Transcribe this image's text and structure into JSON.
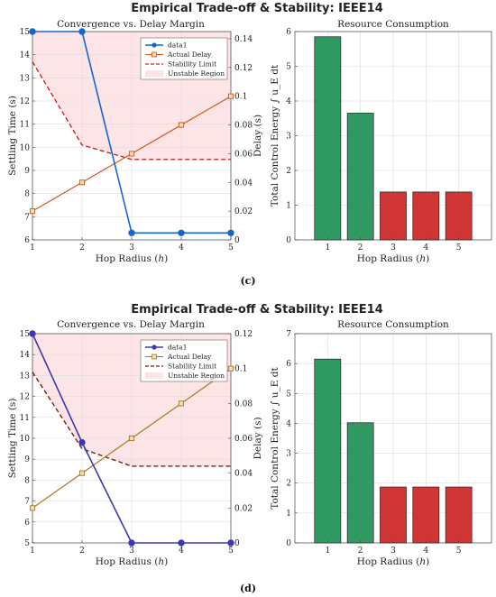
{
  "figure": {
    "panel_labels": [
      "(c)",
      "(d)"
    ]
  },
  "colors": {
    "left_axis": "#1f77b4",
    "right_axis": "#d9541a",
    "unstable_fill": "#fde4e6",
    "green_bar": "#2e9960",
    "red_bar": "#d03535"
  },
  "chart_data": [
    {
      "type": "line",
      "figure": "c",
      "suptitle": "Empirical Trade-off & Stability: IEEE14",
      "title": "Convergence vs. Delay Margin",
      "xlabel": "Hop Radius (h)",
      "ylabel_left": "Settling Time (s)",
      "ylabel_right": "Delay (s)",
      "x": [
        1,
        2,
        3,
        4,
        5
      ],
      "xlim": [
        1,
        5
      ],
      "ylim_left": [
        6,
        15
      ],
      "ylim_right": [
        0,
        0.145
      ],
      "yticks_left": [
        6,
        7,
        8,
        9,
        10,
        11,
        12,
        13,
        14,
        15
      ],
      "yticks_right": [
        0,
        0.02,
        0.04,
        0.06,
        0.08,
        0.1,
        0.12,
        0.14
      ],
      "grid": true,
      "legend_position": "top-right",
      "series": [
        {
          "name": "data1",
          "axis": "left",
          "color": "#1666c8",
          "values": [
            15,
            15,
            6.3,
            6.3,
            6.3
          ]
        },
        {
          "name": "Actual Delay",
          "axis": "right",
          "color": "#d9541a",
          "values": [
            0.02,
            0.04,
            0.06,
            0.08,
            0.1
          ]
        },
        {
          "name": "Stability Limit",
          "axis": "right",
          "color": "#d62020",
          "style": "dashed",
          "values": [
            0.124,
            0.066,
            0.056,
            0.056,
            0.056
          ]
        },
        {
          "name": "Unstable Region",
          "axis": "right",
          "type": "area"
        }
      ]
    },
    {
      "type": "bar",
      "figure": "c",
      "title": "Resource Consumption",
      "xlabel": "Hop Radius (h)",
      "ylabel": "Total Control Energy ∫ u_E dt",
      "categories": [
        "1",
        "2",
        "3",
        "4",
        "5"
      ],
      "values": [
        5.85,
        3.65,
        1.38,
        1.38,
        1.38
      ],
      "ylim": [
        0,
        6
      ],
      "yticks": [
        0,
        1,
        2,
        3,
        4,
        5,
        6
      ],
      "grid": true,
      "bar_colors": [
        "green",
        "green",
        "red",
        "red",
        "red"
      ]
    },
    {
      "type": "line",
      "figure": "d",
      "suptitle": "Empirical Trade-off & Stability: IEEE14",
      "title": "Convergence vs. Delay Margin",
      "xlabel": "Hop Radius (h)",
      "ylabel_left": "Settling Time (s)",
      "ylabel_right": "Delay (s)",
      "x": [
        1,
        2,
        3,
        4,
        5
      ],
      "xlim": [
        1,
        5
      ],
      "ylim_left": [
        5,
        15
      ],
      "ylim_right": [
        0,
        0.12
      ],
      "yticks_left": [
        5,
        6,
        7,
        8,
        9,
        10,
        11,
        12,
        13,
        14,
        15
      ],
      "yticks_right": [
        0,
        0.02,
        0.04,
        0.06,
        0.08,
        0.1,
        0.12
      ],
      "grid": true,
      "legend_position": "top-right",
      "series": [
        {
          "name": "data1",
          "axis": "left",
          "color": "#3a3ab0",
          "values": [
            15,
            9.8,
            5,
            5,
            5
          ]
        },
        {
          "name": "Actual Delay",
          "axis": "right",
          "color": "#a87a1a",
          "values": [
            0.02,
            0.04,
            0.06,
            0.08,
            0.1
          ]
        },
        {
          "name": "Stability Limit",
          "axis": "right",
          "color": "#7a2010",
          "style": "dashed",
          "values": [
            0.098,
            0.054,
            0.044,
            0.044,
            0.044
          ]
        },
        {
          "name": "Unstable Region",
          "axis": "right",
          "type": "area"
        }
      ]
    },
    {
      "type": "bar",
      "figure": "d",
      "title": "Resource Consumption",
      "xlabel": "Hop Radius (h)",
      "ylabel": "Total Control Energy ∫ u_E dt",
      "categories": [
        "1",
        "2",
        "3",
        "4",
        "5"
      ],
      "values": [
        6.15,
        4.02,
        1.87,
        1.87,
        1.87
      ],
      "ylim": [
        0,
        7
      ],
      "yticks": [
        0,
        1,
        2,
        3,
        4,
        5,
        6,
        7
      ],
      "grid": true,
      "bar_colors": [
        "green",
        "green",
        "red",
        "red",
        "red"
      ]
    }
  ]
}
